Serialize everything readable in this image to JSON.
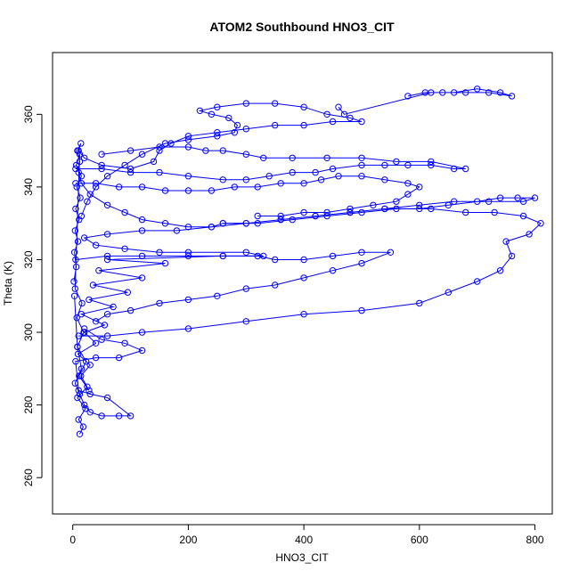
{
  "chart_data": {
    "type": "scatter",
    "title": "ATOM2 Southbound HNO3_CIT",
    "xlabel": "HNO3_CIT",
    "ylabel": "Theta (K)",
    "xlim": [
      -35,
      830
    ],
    "ylim": [
      250,
      377
    ],
    "xticks": [
      0,
      200,
      400,
      600,
      800
    ],
    "yticks": [
      260,
      280,
      300,
      320,
      340,
      360
    ],
    "grid": false,
    "legend": "none",
    "marker": "open-circle",
    "color": "#0000ff",
    "series": [
      {
        "values": [
          [
            12,
            272
          ],
          [
            18,
            274
          ],
          [
            10,
            276
          ],
          [
            22,
            279
          ],
          [
            8,
            282
          ],
          [
            25,
            285
          ],
          [
            14,
            288
          ],
          [
            30,
            291
          ],
          [
            9,
            294
          ],
          [
            40,
            297
          ],
          [
            20,
            300
          ],
          [
            55,
            302
          ],
          [
            15,
            305
          ],
          [
            70,
            307
          ],
          [
            28,
            309
          ],
          [
            95,
            311
          ],
          [
            35,
            313
          ],
          [
            120,
            315
          ],
          [
            45,
            317
          ],
          [
            160,
            319
          ],
          [
            60,
            320
          ],
          [
            260,
            321
          ],
          [
            330,
            321
          ],
          [
            300,
            322
          ],
          [
            200,
            322
          ],
          [
            150,
            322
          ],
          [
            90,
            323
          ],
          [
            40,
            324
          ],
          [
            20,
            326
          ],
          [
            60,
            327
          ],
          [
            120,
            328
          ],
          [
            180,
            328
          ],
          [
            240,
            329
          ],
          [
            260,
            330
          ],
          [
            300,
            330
          ],
          [
            360,
            331
          ],
          [
            420,
            332
          ],
          [
            480,
            333
          ],
          [
            540,
            334
          ],
          [
            600,
            334
          ],
          [
            650,
            335
          ],
          [
            700,
            336
          ],
          [
            740,
            337
          ],
          [
            770,
            337
          ],
          [
            800,
            337
          ],
          [
            780,
            336
          ],
          [
            720,
            336
          ],
          [
            660,
            336
          ],
          [
            600,
            335
          ],
          [
            540,
            334
          ],
          [
            480,
            333
          ],
          [
            420,
            332
          ],
          [
            360,
            331
          ],
          [
            300,
            330
          ],
          [
            240,
            329
          ],
          [
            200,
            329
          ],
          [
            160,
            330
          ],
          [
            120,
            331
          ],
          [
            90,
            333
          ],
          [
            60,
            335
          ],
          [
            30,
            338
          ],
          [
            15,
            341
          ],
          [
            10,
            344
          ],
          [
            12,
            347
          ],
          [
            8,
            350
          ],
          [
            14,
            352
          ],
          [
            10,
            350
          ],
          [
            20,
            348
          ],
          [
            50,
            346
          ],
          [
            100,
            345
          ],
          [
            140,
            347
          ],
          [
            150,
            350
          ],
          [
            170,
            352
          ],
          [
            200,
            354
          ],
          [
            250,
            355
          ],
          [
            300,
            356
          ],
          [
            350,
            357
          ],
          [
            400,
            357
          ],
          [
            450,
            358
          ],
          [
            500,
            358
          ],
          [
            480,
            359
          ],
          [
            440,
            360
          ],
          [
            400,
            362
          ],
          [
            350,
            363
          ],
          [
            300,
            363
          ],
          [
            250,
            362
          ],
          [
            220,
            361
          ],
          [
            240,
            360
          ],
          [
            270,
            359
          ],
          [
            285,
            357
          ],
          [
            280,
            355
          ],
          [
            250,
            354
          ],
          [
            200,
            353
          ],
          [
            160,
            352
          ],
          [
            120,
            349
          ],
          [
            90,
            346
          ],
          [
            60,
            343
          ],
          [
            40,
            340
          ],
          [
            25,
            336
          ],
          [
            15,
            332
          ]
        ]
      },
      {
        "values": [
          [
            580,
            365
          ],
          [
            610,
            366
          ],
          [
            640,
            366
          ],
          [
            680,
            366
          ],
          [
            720,
            366
          ],
          [
            760,
            365
          ],
          [
            740,
            366
          ],
          [
            700,
            367
          ],
          [
            660,
            366
          ],
          [
            620,
            366
          ],
          [
            470,
            360
          ],
          [
            460,
            362
          ]
        ]
      },
      {
        "values": [
          [
            5,
            320
          ],
          [
            60,
            321
          ],
          [
            120,
            321
          ],
          [
            200,
            321
          ],
          [
            260,
            321
          ],
          [
            320,
            321
          ],
          [
            350,
            320
          ],
          [
            400,
            320
          ],
          [
            450,
            321
          ],
          [
            500,
            322
          ],
          [
            550,
            322
          ],
          [
            500,
            319
          ],
          [
            450,
            317
          ],
          [
            400,
            315
          ],
          [
            350,
            313
          ],
          [
            300,
            312
          ],
          [
            250,
            310
          ],
          [
            200,
            309
          ],
          [
            150,
            308
          ],
          [
            100,
            306
          ],
          [
            60,
            305
          ],
          [
            40,
            303
          ]
        ]
      },
      {
        "values": [
          [
            10,
            299
          ],
          [
            60,
            299
          ],
          [
            120,
            300
          ],
          [
            200,
            301
          ],
          [
            300,
            303
          ],
          [
            400,
            305
          ],
          [
            500,
            306
          ],
          [
            600,
            308
          ],
          [
            650,
            311
          ],
          [
            700,
            314
          ],
          [
            740,
            317
          ],
          [
            760,
            321
          ],
          [
            750,
            325
          ],
          [
            790,
            327
          ],
          [
            810,
            330
          ],
          [
            780,
            332
          ],
          [
            730,
            333
          ],
          [
            680,
            333
          ],
          [
            620,
            334
          ],
          [
            560,
            334
          ],
          [
            500,
            333
          ],
          [
            440,
            332
          ],
          [
            380,
            331
          ],
          [
            320,
            330
          ],
          [
            260,
            330
          ]
        ]
      },
      {
        "values": [
          [
            5,
            345
          ],
          [
            50,
            345
          ],
          [
            100,
            344
          ],
          [
            150,
            344
          ],
          [
            200,
            343
          ],
          [
            260,
            342
          ],
          [
            300,
            342
          ],
          [
            340,
            343
          ],
          [
            380,
            344
          ],
          [
            420,
            344
          ],
          [
            450,
            345
          ],
          [
            500,
            346
          ],
          [
            540,
            346
          ],
          [
            580,
            346
          ],
          [
            620,
            346
          ],
          [
            660,
            345
          ],
          [
            680,
            345
          ],
          [
            620,
            347
          ],
          [
            560,
            347
          ],
          [
            500,
            348
          ],
          [
            440,
            348
          ],
          [
            380,
            348
          ],
          [
            330,
            348
          ],
          [
            300,
            349
          ],
          [
            260,
            350
          ],
          [
            230,
            350
          ],
          [
            200,
            351
          ],
          [
            150,
            351
          ],
          [
            100,
            350
          ],
          [
            50,
            349
          ]
        ]
      },
      {
        "values": [
          [
            5,
            341
          ],
          [
            40,
            341
          ],
          [
            80,
            340
          ],
          [
            120,
            340
          ],
          [
            160,
            339
          ],
          [
            200,
            339
          ],
          [
            240,
            339
          ],
          [
            280,
            340
          ],
          [
            320,
            340
          ],
          [
            360,
            341
          ],
          [
            400,
            341
          ],
          [
            430,
            342
          ],
          [
            460,
            343
          ],
          [
            500,
            343
          ],
          [
            540,
            342
          ],
          [
            580,
            341
          ],
          [
            600,
            340
          ],
          [
            580,
            338
          ],
          [
            560,
            336
          ],
          [
            520,
            335
          ],
          [
            480,
            334
          ],
          [
            440,
            333
          ],
          [
            400,
            333
          ],
          [
            360,
            332
          ],
          [
            320,
            332
          ]
        ]
      },
      {
        "values": [
          [
            3,
            310
          ],
          [
            8,
            296
          ],
          [
            15,
            290
          ],
          [
            4,
            286
          ],
          [
            12,
            283
          ],
          [
            20,
            280
          ],
          [
            30,
            278
          ],
          [
            50,
            277
          ],
          [
            80,
            277
          ],
          [
            100,
            277
          ],
          [
            60,
            282
          ],
          [
            30,
            283
          ],
          [
            10,
            284
          ],
          [
            5,
            292
          ],
          [
            40,
            293
          ],
          [
            80,
            293
          ],
          [
            120,
            295
          ],
          [
            90,
            297
          ],
          [
            50,
            298
          ],
          [
            20,
            301
          ]
        ]
      },
      {
        "values": [
          [
            2,
            314
          ],
          [
            6,
            318
          ],
          [
            3,
            322
          ],
          [
            9,
            325
          ],
          [
            4,
            328
          ],
          [
            11,
            331
          ],
          [
            5,
            334
          ],
          [
            13,
            337
          ],
          [
            7,
            340
          ],
          [
            15,
            343
          ],
          [
            6,
            346
          ],
          [
            12,
            349
          ],
          [
            4,
            312
          ],
          [
            16,
            308
          ],
          [
            7,
            304
          ],
          [
            19,
            300
          ],
          [
            8,
            296
          ],
          [
            23,
            292
          ],
          [
            11,
            288
          ],
          [
            28,
            284
          ]
        ]
      }
    ]
  }
}
